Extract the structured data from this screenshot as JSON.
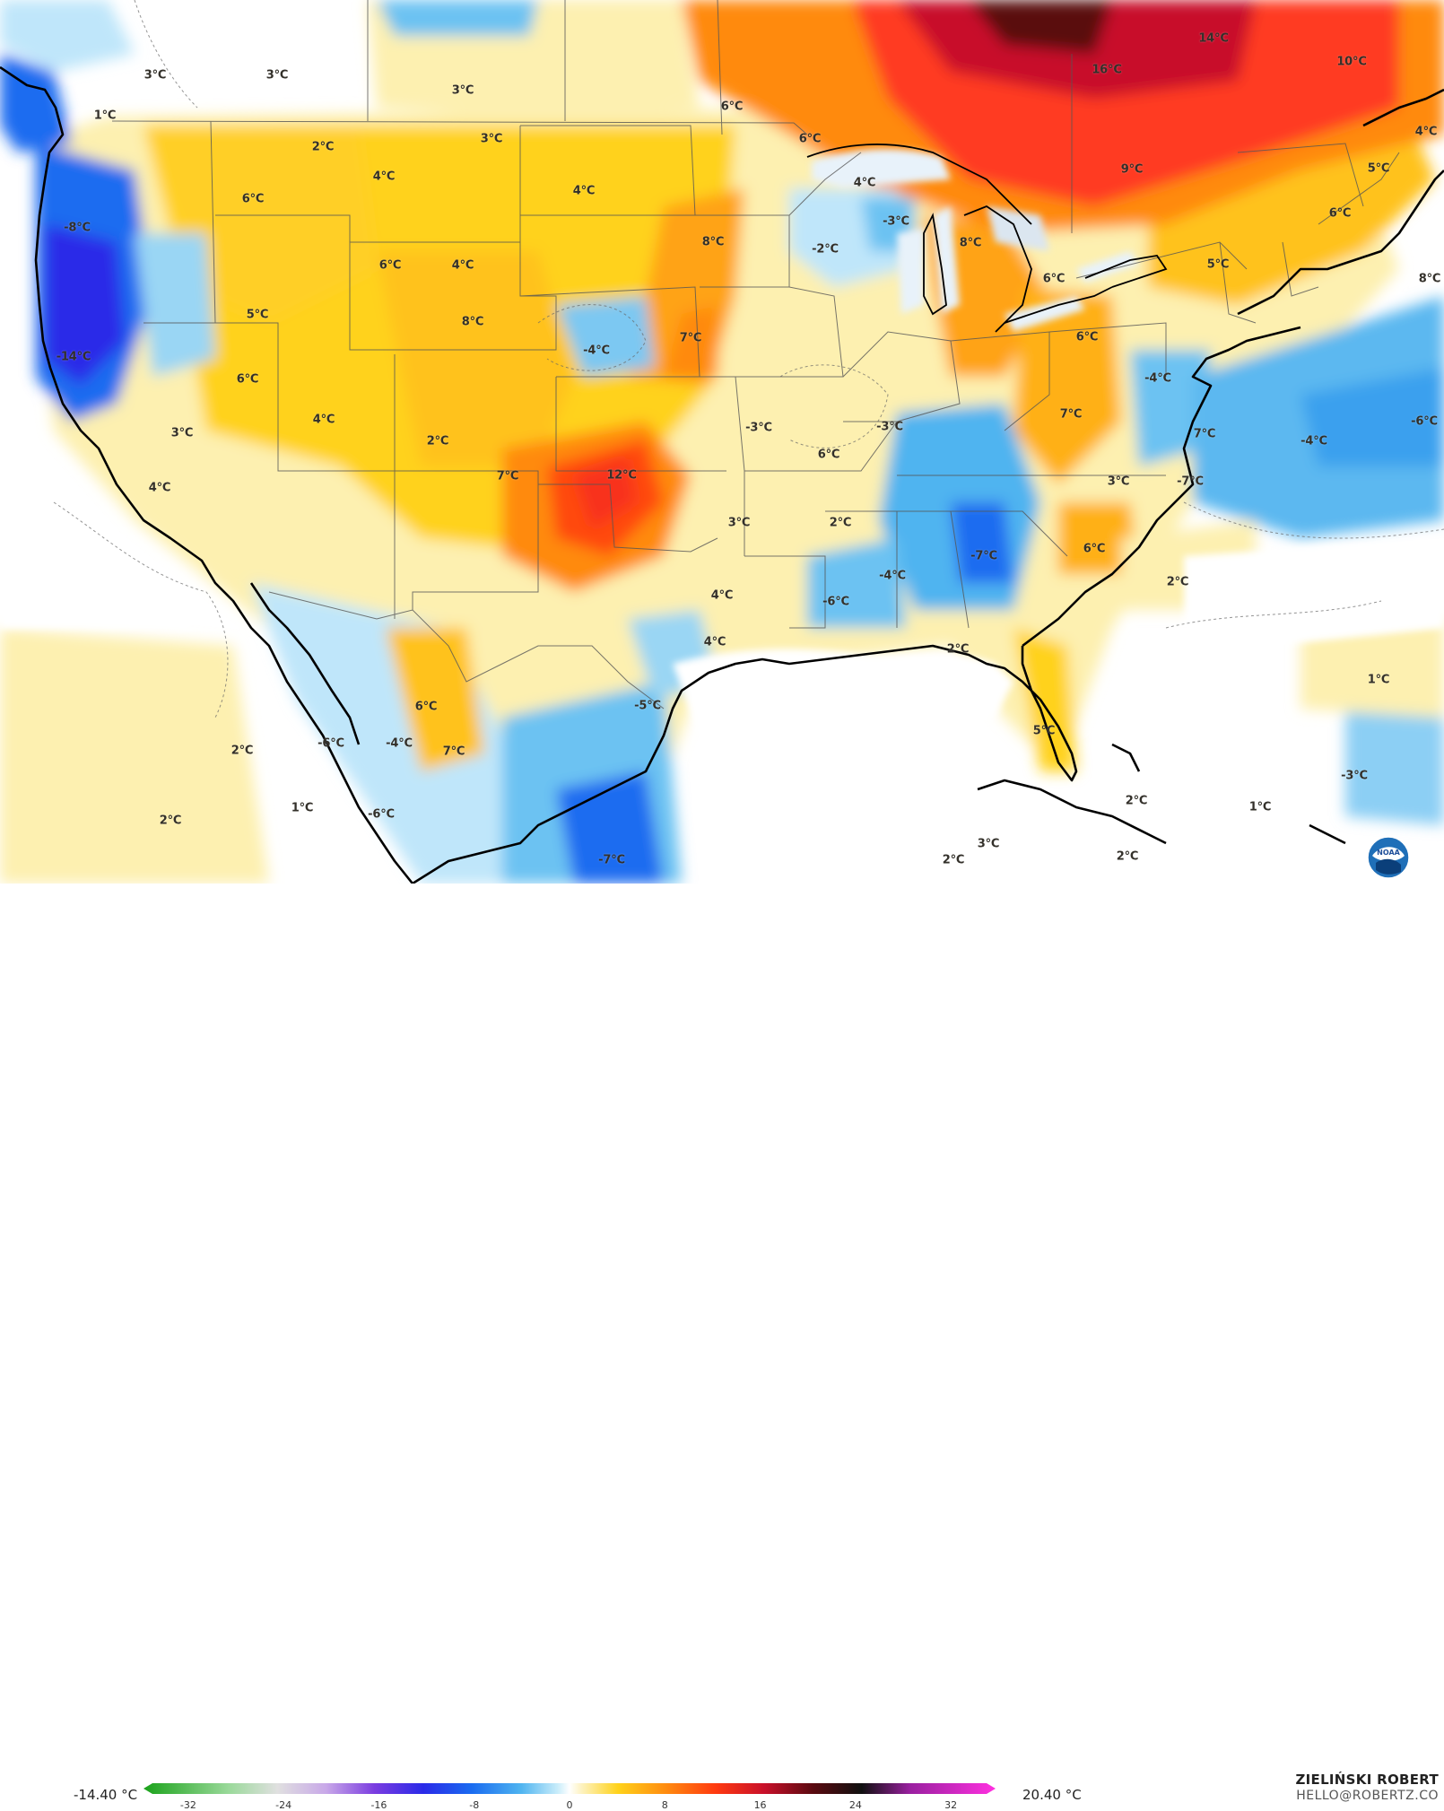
{
  "map": {
    "region": "Continental United States",
    "variable_unit": "°C",
    "labels": [
      {
        "id": "t1",
        "text": "3°C"
      },
      {
        "id": "t2",
        "text": "3°C"
      },
      {
        "id": "t3",
        "text": "3°C"
      },
      {
        "id": "t4",
        "text": "1°C"
      },
      {
        "id": "t5",
        "text": "2°C"
      },
      {
        "id": "t6",
        "text": "3°C"
      },
      {
        "id": "t7",
        "text": "4°C"
      },
      {
        "id": "t8",
        "text": "4°C"
      },
      {
        "id": "t9",
        "text": "6°C"
      },
      {
        "id": "t10",
        "text": "-8°C"
      },
      {
        "id": "t11",
        "text": "6°C"
      },
      {
        "id": "t12",
        "text": "4°C"
      },
      {
        "id": "t13",
        "text": "8°C"
      },
      {
        "id": "t14",
        "text": "5°C"
      },
      {
        "id": "t15",
        "text": "-14°C"
      },
      {
        "id": "t16",
        "text": "6°C"
      },
      {
        "id": "t17",
        "text": "4°C"
      },
      {
        "id": "t18",
        "text": "3°C"
      },
      {
        "id": "t19",
        "text": "2°C"
      },
      {
        "id": "t20",
        "text": "4°C"
      },
      {
        "id": "t21",
        "text": "7°C"
      },
      {
        "id": "t22",
        "text": "12°C"
      },
      {
        "id": "t23",
        "text": "-4°C"
      },
      {
        "id": "t24",
        "text": "7°C"
      },
      {
        "id": "t25",
        "text": "8°C"
      },
      {
        "id": "t26",
        "text": "6°C"
      },
      {
        "id": "t27",
        "text": "6°C"
      },
      {
        "id": "t28",
        "text": "4°C"
      },
      {
        "id": "t29",
        "text": "-2°C"
      },
      {
        "id": "t30",
        "text": "-3°C"
      },
      {
        "id": "t31",
        "text": "8°C"
      },
      {
        "id": "t32",
        "text": "6°C"
      },
      {
        "id": "t33",
        "text": "-3°C"
      },
      {
        "id": "t34",
        "text": "-3°C"
      },
      {
        "id": "t35",
        "text": "6°C"
      },
      {
        "id": "t36",
        "text": "3°C"
      },
      {
        "id": "t37",
        "text": "2°C"
      },
      {
        "id": "t38",
        "text": "4°C"
      },
      {
        "id": "t39",
        "text": "4°C"
      },
      {
        "id": "t40",
        "text": "-4°C"
      },
      {
        "id": "t41",
        "text": "-6°C"
      },
      {
        "id": "t42",
        "text": "-7°C"
      },
      {
        "id": "t43",
        "text": "6°C"
      },
      {
        "id": "t44",
        "text": "3°C"
      },
      {
        "id": "t45",
        "text": "7°C"
      },
      {
        "id": "t46",
        "text": "6°C"
      },
      {
        "id": "t47",
        "text": "-4°C"
      },
      {
        "id": "t48",
        "text": "7°C"
      },
      {
        "id": "t49",
        "text": "-7°C"
      },
      {
        "id": "t50",
        "text": "-4°C"
      },
      {
        "id": "t51",
        "text": "-6°C"
      },
      {
        "id": "t52",
        "text": "5°C"
      },
      {
        "id": "t53",
        "text": "6°C"
      },
      {
        "id": "t54",
        "text": "5°C"
      },
      {
        "id": "t55",
        "text": "4°C"
      },
      {
        "id": "t56",
        "text": "8°C"
      },
      {
        "id": "t57",
        "text": "16°C"
      },
      {
        "id": "t58",
        "text": "14°C"
      },
      {
        "id": "t59",
        "text": "10°C"
      },
      {
        "id": "t60",
        "text": "9°C"
      },
      {
        "id": "t61",
        "text": "2°C"
      },
      {
        "id": "t62",
        "text": "1°C"
      },
      {
        "id": "t63",
        "text": "-3°C"
      },
      {
        "id": "t64",
        "text": "1°C"
      },
      {
        "id": "t65",
        "text": "2°C"
      },
      {
        "id": "t66",
        "text": "5°C"
      },
      {
        "id": "t67",
        "text": "2°C"
      },
      {
        "id": "t68",
        "text": "-5°C"
      },
      {
        "id": "t69",
        "text": "6°C"
      },
      {
        "id": "t70",
        "text": "7°C"
      },
      {
        "id": "t71",
        "text": "-6°C"
      },
      {
        "id": "t72",
        "text": "-4°C"
      },
      {
        "id": "t73",
        "text": "-6°C"
      },
      {
        "id": "t74",
        "text": "2°C"
      },
      {
        "id": "t75",
        "text": "2°C"
      },
      {
        "id": "t76",
        "text": "1°C"
      },
      {
        "id": "t77",
        "text": "-7°C"
      },
      {
        "id": "t78",
        "text": "3°C"
      },
      {
        "id": "t79",
        "text": "2°C"
      },
      {
        "id": "t80",
        "text": "2°C"
      }
    ]
  },
  "colorbar": {
    "min_label": "-14.40 °C",
    "max_label": "20.40 °C",
    "ticks": [
      "-32",
      "-24",
      "-16",
      "-8",
      "0",
      "8",
      "16",
      "24",
      "32"
    ],
    "range": [
      -35,
      35
    ],
    "stops": [
      {
        "v": -35,
        "c": "#1aa21a"
      },
      {
        "v": -28,
        "c": "#9ad99a"
      },
      {
        "v": -24,
        "c": "#e0e0e0"
      },
      {
        "v": -20,
        "c": "#c8a8e8"
      },
      {
        "v": -16,
        "c": "#7a3ce0"
      },
      {
        "v": -12,
        "c": "#2a2ae8"
      },
      {
        "v": -8,
        "c": "#1a6cf0"
      },
      {
        "v": -4,
        "c": "#4fb4f0"
      },
      {
        "v": -1,
        "c": "#c8ecfa"
      },
      {
        "v": 0,
        "c": "#ffffff"
      },
      {
        "v": 1,
        "c": "#fdf2c0"
      },
      {
        "v": 4,
        "c": "#ffd21a"
      },
      {
        "v": 8,
        "c": "#ff8a10"
      },
      {
        "v": 12,
        "c": "#ff3a10"
      },
      {
        "v": 16,
        "c": "#c8102a"
      },
      {
        "v": 20,
        "c": "#5a0a10"
      },
      {
        "v": 24,
        "c": "#101010"
      },
      {
        "v": 28,
        "c": "#9a20a0"
      },
      {
        "v": 35,
        "c": "#ff30e0"
      }
    ]
  },
  "credit": {
    "name": "ZIELIŃSKI ROBERT",
    "email": "HELLO@ROBERTZ.CO"
  },
  "logo": {
    "icon": "noaa-logo-icon",
    "text": "NOAA"
  }
}
